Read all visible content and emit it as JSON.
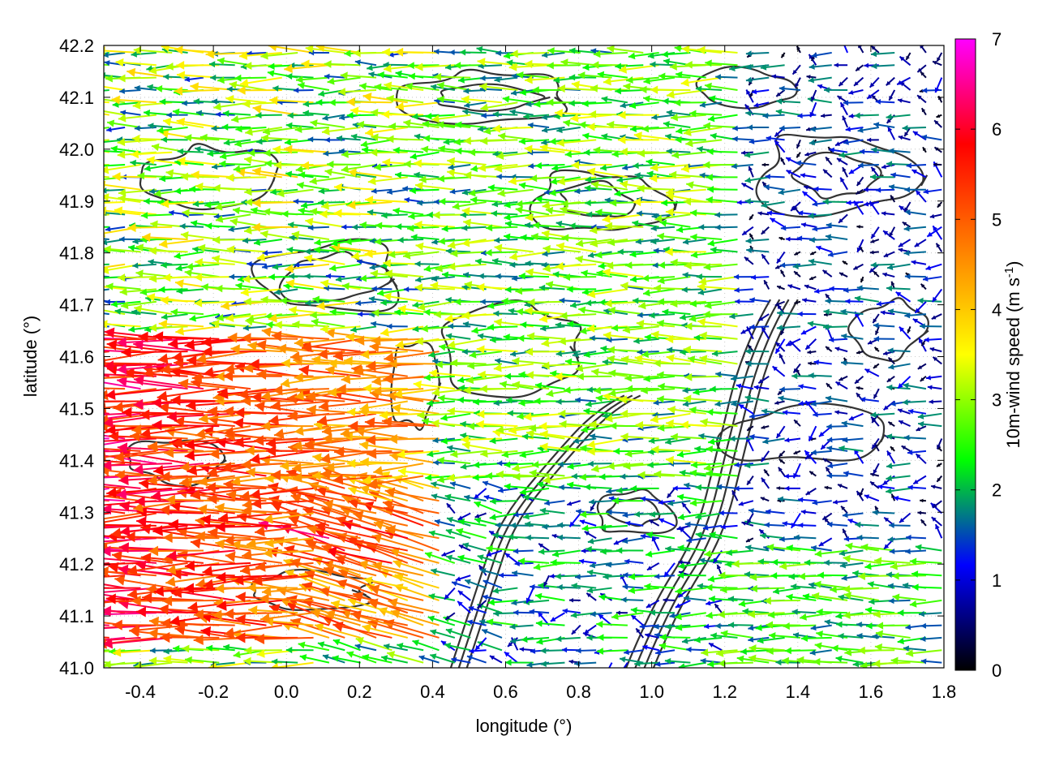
{
  "chart_data": {
    "type": "quiver",
    "title": "",
    "xlabel": "longitude (°)",
    "ylabel": "latitude (°)",
    "xlim": [
      -0.5,
      1.8
    ],
    "ylim": [
      41.0,
      42.2
    ],
    "xticks": [
      -0.4,
      -0.2,
      0.0,
      0.2,
      0.4,
      0.6,
      0.8,
      1.0,
      1.2,
      1.4,
      1.6,
      1.8
    ],
    "xtick_labels": [
      "-0.4",
      "-0.2",
      "0.0",
      "0.2",
      "0.4",
      "0.6",
      "0.8",
      "1.0",
      "1.2",
      "1.4",
      "1.6",
      "1.8"
    ],
    "yticks": [
      41.0,
      41.1,
      41.2,
      41.3,
      41.4,
      41.5,
      41.6,
      41.7,
      41.8,
      41.9,
      42.0,
      42.1,
      42.2
    ],
    "ytick_labels": [
      "41.0",
      "41.1",
      "41.2",
      "41.3",
      "41.4",
      "41.5",
      "41.6",
      "41.7",
      "41.8",
      "41.9",
      "42.0",
      "42.1",
      "42.2"
    ],
    "grid": true,
    "colorbar": {
      "label_main": "10m-wind speed (m s",
      "label_sup": "-1",
      "label_close": ")",
      "range": [
        0,
        7
      ],
      "ticks": [
        "0",
        "1",
        "2",
        "3",
        "4",
        "5",
        "6",
        "7"
      ],
      "colormap": [
        "#000000",
        "#0000ff",
        "#00ff00",
        "#ffff00",
        "#ff8000",
        "#ff0000",
        "#ff00ff"
      ]
    },
    "contour_color": "#333333",
    "wind_direction": "predominantly from the east (vectors pointing west)",
    "speed_regions": [
      {
        "region": "west / southwest (lon -0.5 to 0.4, lat 41.1–41.6)",
        "speed_range": [
          4,
          7
        ]
      },
      {
        "region": "central (lon 0.4 to 1.2, lat 41.4–41.9)",
        "speed_range": [
          2,
          4
        ]
      },
      {
        "region": "north-east (lon 1.2 to 1.8, lat 41.5–42.2)",
        "speed_range": [
          0,
          2
        ]
      },
      {
        "region": "south-east (lon 1.2 to 1.8, lat 41.0–41.2)",
        "speed_range": [
          1.5,
          3.5
        ]
      }
    ]
  }
}
